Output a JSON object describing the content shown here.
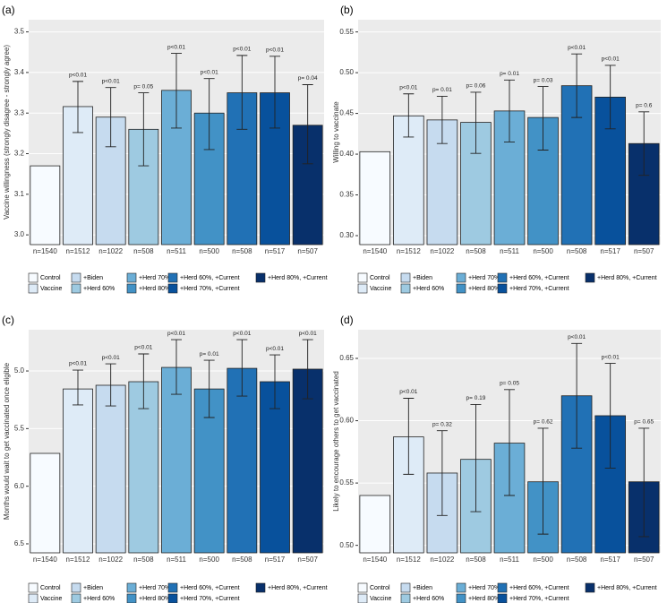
{
  "legend": [
    {
      "name": "Control",
      "color": "#f7fbff"
    },
    {
      "name": "Vaccine",
      "color": "#deebf7"
    },
    {
      "name": "+Biden",
      "color": "#c6dbef"
    },
    {
      "name": "+Herd 60%",
      "color": "#9ecae1"
    },
    {
      "name": "+Herd 70%",
      "color": "#6baed6"
    },
    {
      "name": "+Herd 80%",
      "color": "#4292c6"
    },
    {
      "name": "+Herd 60%, +Current",
      "color": "#2171b5"
    },
    {
      "name": "+Herd 70%, +Current",
      "color": "#08519c"
    },
    {
      "name": "+Herd 80%, +Current",
      "color": "#08306b"
    }
  ],
  "chart_data": [
    {
      "type": "bar",
      "panel": "(a)",
      "ylabel": "Vaccine willingness (strongly disagree - strongly agree)",
      "categories": [
        "n=1540",
        "n=1512",
        "n=1022",
        "n=508",
        "n=511",
        "n=500",
        "n=508",
        "n=517",
        "n=507"
      ],
      "values": [
        3.17,
        3.316,
        3.29,
        3.26,
        3.356,
        3.3,
        3.35,
        3.35,
        3.27
      ],
      "ci_low": [
        null,
        3.252,
        3.217,
        3.17,
        3.263,
        3.21,
        3.26,
        3.263,
        3.175
      ],
      "ci_high": [
        null,
        3.378,
        3.363,
        3.35,
        3.447,
        3.385,
        3.442,
        3.44,
        3.37
      ],
      "p_labels": [
        null,
        "p<0.01",
        "p<0.01",
        "p= 0.05",
        "p<0.01",
        "p<0.01",
        "p<0.01",
        "p<0.01",
        "p= 0.04"
      ],
      "ylim": [
        2.976,
        3.53
      ],
      "yticks": [
        {
          "value": 3,
          "label": "3.0"
        },
        3.1,
        3.2,
        3.3,
        3.4,
        3.5
      ],
      "grid": true
    },
    {
      "type": "bar",
      "panel": "(b)",
      "ylabel": "Willing to vaccinate",
      "categories": [
        "n=1540",
        "n=1512",
        "n=1022",
        "n=508",
        "n=511",
        "n=500",
        "n=508",
        "n=517",
        "n=507"
      ],
      "values": [
        0.403,
        0.447,
        0.442,
        0.439,
        0.453,
        0.445,
        0.484,
        0.47,
        0.413
      ],
      "ci_low": [
        null,
        0.421,
        0.413,
        0.401,
        0.415,
        0.405,
        0.445,
        0.431,
        0.374
      ],
      "ci_high": [
        null,
        0.474,
        0.471,
        0.476,
        0.491,
        0.483,
        0.523,
        0.509,
        0.452
      ],
      "p_labels": [
        null,
        "p<0.01",
        "p= 0.01",
        "p= 0.06",
        "p= 0.01",
        "p= 0.03",
        "p<0.01",
        "p<0.01",
        "p= 0.6"
      ],
      "ylim": [
        0.289,
        0.565
      ],
      "yticks": [
        {
          "value": 0.3,
          "label": "0.30"
        },
        0.35,
        {
          "value": 0.4,
          "label": "0.40"
        },
        0.45,
        {
          "value": 0.5,
          "label": "0.50"
        },
        0.55
      ],
      "grid": true
    },
    {
      "type": "bar",
      "panel": "(c)",
      "ylabel": "Months would wait to get vaccinated once eligible",
      "categories": [
        "n=1540",
        "n=1512",
        "n=1022",
        "n=508",
        "n=511",
        "n=500",
        "n=508",
        "n=517",
        "n=507"
      ],
      "values": [
        5.715,
        5.156,
        5.124,
        5.093,
        4.969,
        5.156,
        4.977,
        5.093,
        4.984
      ],
      "ci_low": [
        null,
        4.992,
        4.938,
        4.852,
        4.728,
        4.907,
        4.728,
        4.86,
        4.728
      ],
      "ci_high": [
        null,
        5.295,
        5.303,
        5.327,
        5.202,
        5.404,
        5.218,
        5.327,
        5.241
      ],
      "p_labels": [
        null,
        "p<0.01",
        "p<0.01",
        "p<0.01",
        "p<0.01",
        "p= 0.01",
        "p<0.01",
        "p<0.01",
        "p<0.01"
      ],
      "ylim": [
        4.642,
        6.578
      ],
      "reversed": true,
      "yticks": [
        {
          "value": 5,
          "label": "5.0"
        },
        5.5,
        {
          "value": 6,
          "label": "6.0"
        },
        6.5
      ],
      "grid": true
    },
    {
      "type": "bar",
      "panel": "(d)",
      "ylabel": "Likely to encourage others to get vaccinated",
      "categories": [
        "n=1540",
        "n=1512",
        "n=1022",
        "n=508",
        "n=511",
        "n=500",
        "n=508",
        "n=517",
        "n=507"
      ],
      "values": [
        0.54,
        0.587,
        0.558,
        0.569,
        0.582,
        0.551,
        0.62,
        0.604,
        0.551
      ],
      "ci_low": [
        null,
        0.557,
        0.524,
        0.527,
        0.54,
        0.509,
        0.578,
        0.562,
        0.507
      ],
      "ci_high": [
        null,
        0.618,
        0.592,
        0.613,
        0.625,
        0.594,
        0.662,
        0.646,
        0.594
      ],
      "p_labels": [
        null,
        "p<0.01",
        "p= 0.32",
        "p= 0.19",
        "p= 0.05",
        "p= 0.62",
        "p<0.01",
        "p<0.01",
        "p= 0.65"
      ],
      "ylim": [
        0.494,
        0.673
      ],
      "yticks": [
        {
          "value": 0.5,
          "label": "0.50"
        },
        0.55,
        {
          "value": 0.6,
          "label": "0.60"
        },
        0.65
      ],
      "grid": true
    }
  ]
}
